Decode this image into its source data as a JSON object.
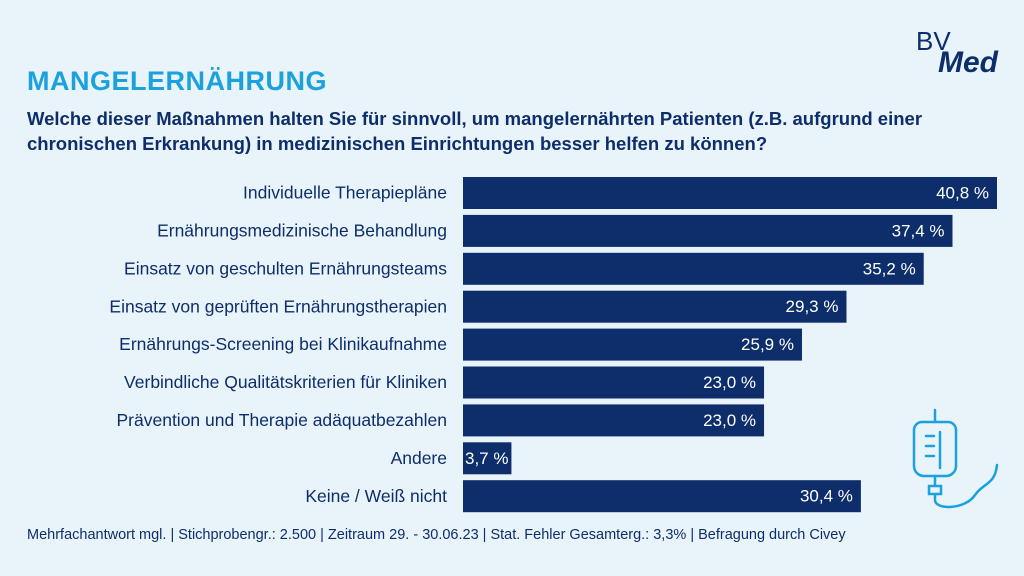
{
  "chart_data": {
    "type": "bar",
    "orientation": "horizontal",
    "title": "MANGELERNÄHRUNG",
    "subtitle": "Welche dieser Maßnahmen halten Sie für sinnvoll, um mangelernährten Patienten (z.B. aufgrund einer chronischen Erkrankung) in medizinischen Einrichtungen besser helfen zu können?",
    "categories": [
      "Individuelle Therapiepläne",
      "Ernährungsmedizinische Behandlung",
      "Einsatz von geschulten Ernährungsteams",
      "Einsatz von geprüften Ernährungstherapien",
      "Ernährungs-Screening bei Klinikaufnahme",
      "Verbindliche Qualitätskriterien für Kliniken",
      "Prävention und Therapie adäquatbezahlen",
      "Andere",
      "Keine / Weiß nicht"
    ],
    "values": [
      40.8,
      37.4,
      35.2,
      29.3,
      25.9,
      23.0,
      23.0,
      3.7,
      30.4
    ],
    "value_labels": [
      "40,8 %",
      "37,4 %",
      "35,2 %",
      "29,3 %",
      "25,9 %",
      "23,0 %",
      "23,0 %",
      "3,7 %",
      "30,4 %"
    ],
    "color": "#0d2e6b"
  },
  "footer": "Mehrfachantwort mgl. | Stichprobengr.: 2.500 | Zeitraum 29. - 30.06.23 | Stat. Fehler Gesamterg.: 3,3% | Befragung durch Civey",
  "logo": {
    "first": "BV",
    "second": "Med"
  }
}
